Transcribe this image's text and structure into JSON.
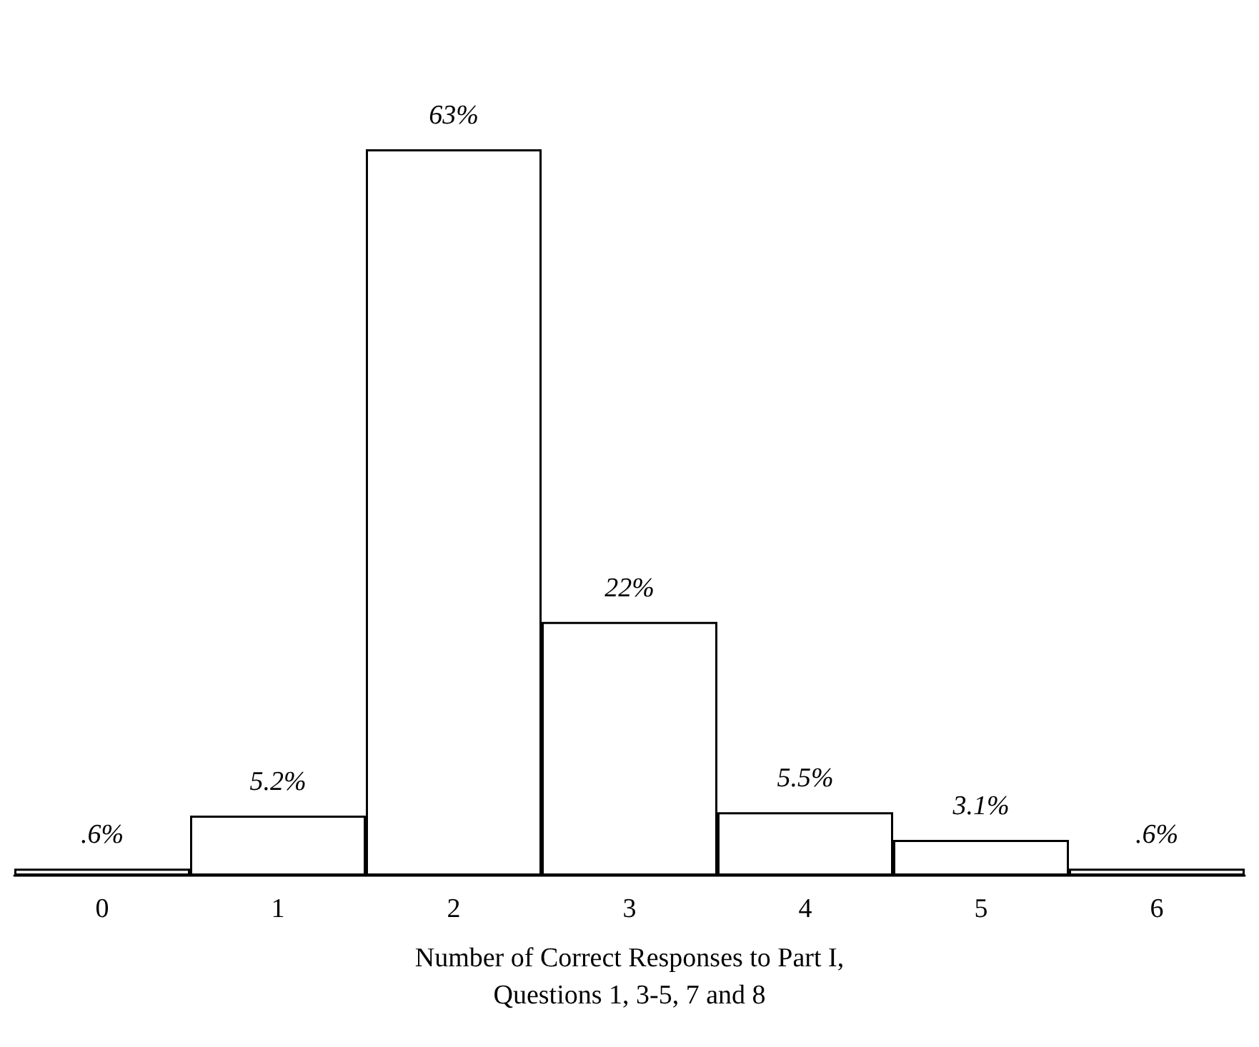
{
  "chart_data": {
    "type": "bar",
    "categories": [
      "0",
      "1",
      "2",
      "3",
      "4",
      "5",
      "6"
    ],
    "values": [
      0.6,
      5.2,
      63,
      22,
      5.5,
      3.1,
      0.6
    ],
    "value_labels": [
      ".6%",
      "5.2%",
      "63%",
      "22%",
      "5.5%",
      "3.1%",
      ".6%"
    ],
    "color": "#ffffff",
    "xlabel": "Number of Correct Responses to Part I,\nQuestions 1, 3-5, 7 and 8"
  }
}
